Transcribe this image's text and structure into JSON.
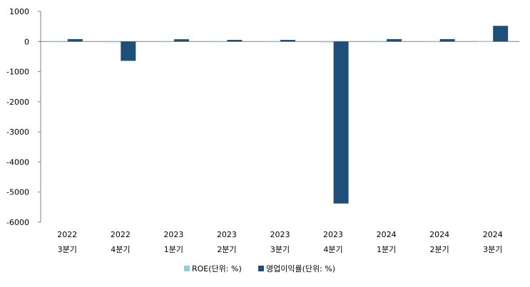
{
  "chart_data": {
    "type": "bar",
    "categories": [
      [
        "2022",
        "3분기"
      ],
      [
        "2022",
        "4분기"
      ],
      [
        "2023",
        "1분기"
      ],
      [
        "2023",
        "2분기"
      ],
      [
        "2023",
        "3분기"
      ],
      [
        "2023",
        "4분기"
      ],
      [
        "2024",
        "1분기"
      ],
      [
        "2024",
        "2분기"
      ],
      [
        "2024",
        "3분기"
      ]
    ],
    "series": [
      {
        "name": "ROE(단위: %)",
        "color": "#92CDDC",
        "values": [
          3,
          -5,
          3,
          2,
          2,
          -20,
          3,
          3,
          8
        ]
      },
      {
        "name": "영업이익률(단위: %)",
        "color": "#1F4E79",
        "values": [
          80,
          -640,
          75,
          55,
          55,
          -5380,
          80,
          80,
          520
        ]
      }
    ],
    "ylim": [
      -6000,
      1000
    ],
    "yticks": [
      "1000",
      "0",
      "-1000",
      "-2000",
      "-3000",
      "-4000",
      "-5000",
      "-6000"
    ],
    "ytick_values": [
      1000,
      0,
      -1000,
      -2000,
      -3000,
      -4000,
      -5000,
      -6000
    ],
    "grid": false,
    "legend_position": "bottom"
  }
}
